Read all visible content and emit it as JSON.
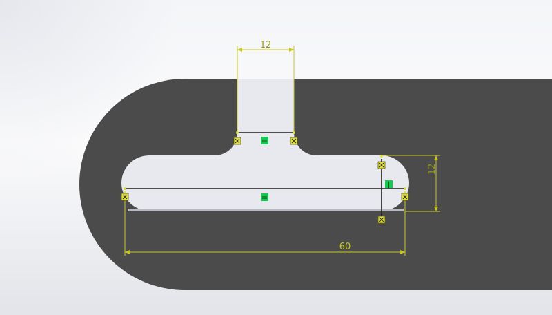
{
  "colors": {
    "part_face": "#4b4b4b",
    "slot_fill": "#e8e9ee",
    "sketch_line": "#1a1a1a",
    "dimension": "#c8c81e",
    "relation_badge": "#14c850",
    "endpoint_marker": "#e0e040"
  },
  "dimensions": {
    "top_width": "12",
    "right_height": "12",
    "bottom_length": "60"
  },
  "relations": {
    "top_horizontal": "=",
    "centerline_horizontal": "=",
    "right_vertical": "|"
  },
  "icons": {
    "endpoint": "sketch-point-icon",
    "horizontal_relation": "horizontal-relation-icon",
    "vertical_relation": "vertical-relation-icon"
  }
}
